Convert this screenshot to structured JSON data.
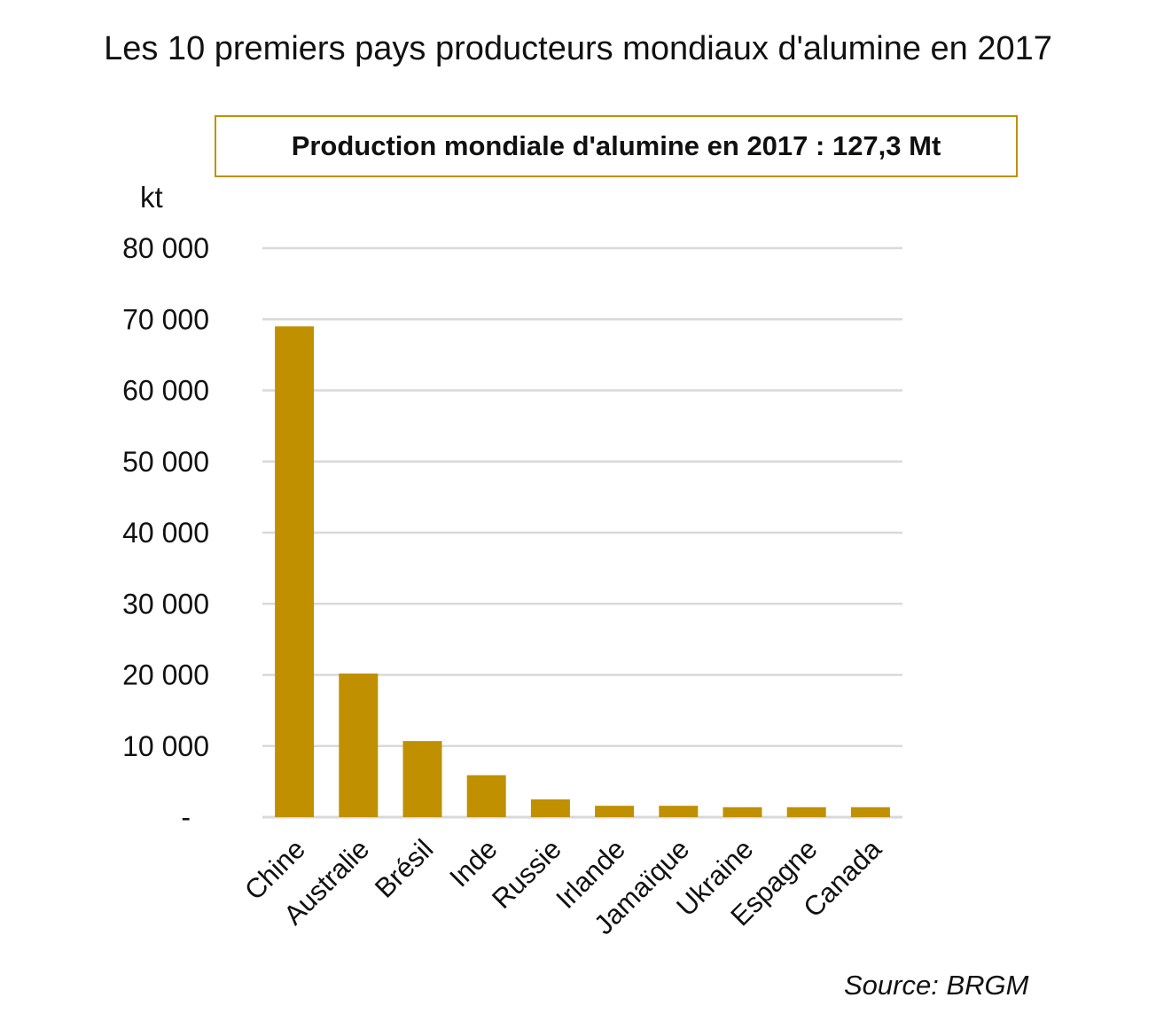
{
  "chart_data": {
    "type": "bar",
    "title": "Les 10 premiers pays producteurs mondiaux d'alumine en 2017",
    "annotation": "Production mondiale d'alumine en 2017 : 127,3 Mt",
    "ylabel": "kt",
    "xlabel": "",
    "source": "Source: BRGM",
    "categories": [
      "Chine",
      "Australie",
      "Brésil",
      "Inde",
      "Russie",
      "Irlande",
      "Jamaïque",
      "Ukraine",
      "Espagne",
      "Canada"
    ],
    "values": [
      69000,
      20200,
      10700,
      5900,
      2500,
      1600,
      1600,
      1400,
      1400,
      1400
    ],
    "ylim": [
      0,
      80000
    ],
    "yticks": [
      0,
      10000,
      20000,
      30000,
      40000,
      50000,
      60000,
      70000,
      80000
    ],
    "ytick_labels": [
      "-",
      "10 000",
      "20 000",
      "30 000",
      "40 000",
      "50 000",
      "60 000",
      "70 000",
      "80 000"
    ],
    "grid": true,
    "bar_color": "#c09000",
    "grid_color": "#d9d9d9"
  }
}
